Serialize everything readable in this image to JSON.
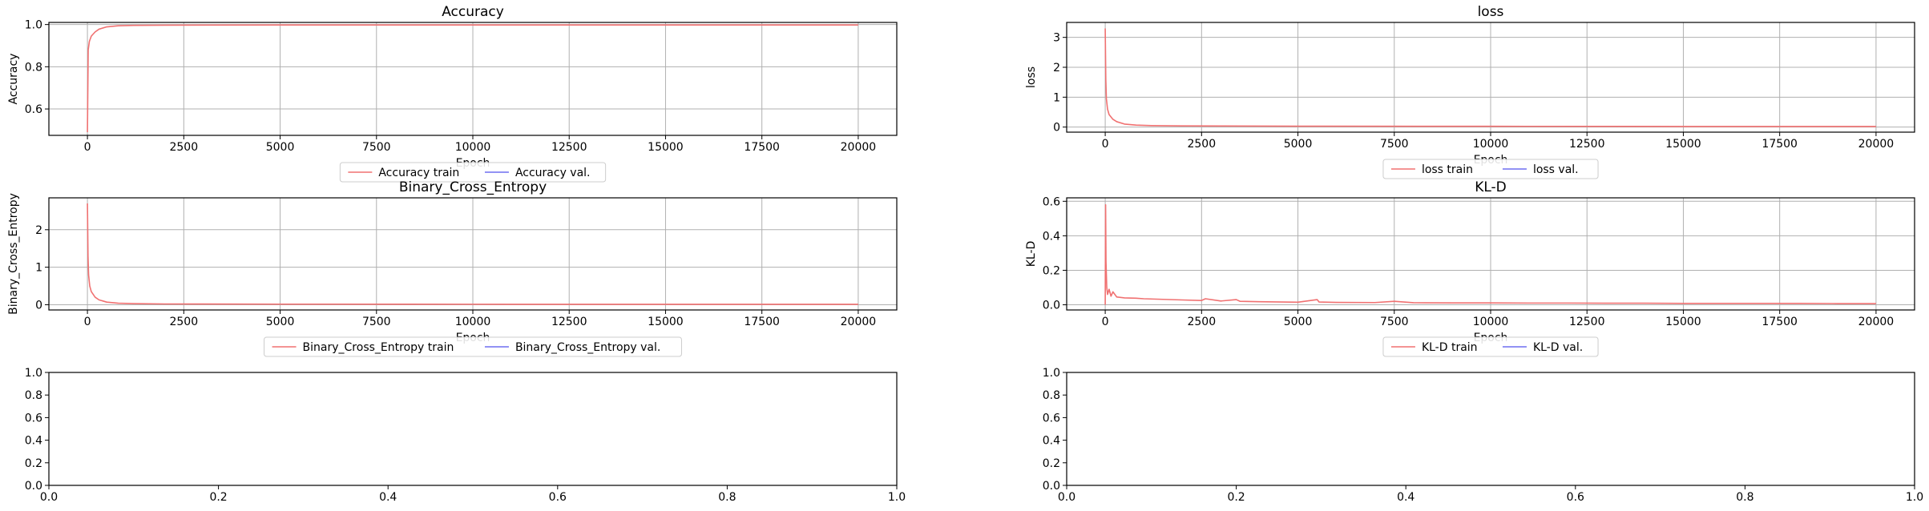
{
  "colors": {
    "train": "#f07171",
    "val": "#6e6ef0",
    "grid": "#b0b0b0",
    "axis": "#000000",
    "legend_border": "#cccccc"
  },
  "chart_data": [
    {
      "type": "line",
      "title": "Accuracy",
      "xlabel": "Epoch",
      "ylabel": "Accuracy",
      "xlim": [
        -1000,
        21000
      ],
      "ylim": [
        0.475,
        1.01
      ],
      "xticks": [
        0,
        2500,
        5000,
        7500,
        10000,
        12500,
        15000,
        17500,
        20000
      ],
      "yticks": [
        0.6,
        0.8,
        1.0
      ],
      "ytick_labels": [
        "0.6",
        "0.8",
        "1.0"
      ],
      "grid": true,
      "legend": "below",
      "series": [
        {
          "name": "Accuracy train",
          "x": [
            0,
            20,
            50,
            100,
            200,
            300,
            500,
            800,
            1200,
            2000,
            5000,
            10000,
            15000,
            20000
          ],
          "y": [
            0.49,
            0.88,
            0.92,
            0.945,
            0.965,
            0.978,
            0.989,
            0.994,
            0.996,
            0.997,
            0.998,
            0.998,
            0.998,
            0.998
          ]
        },
        {
          "name": "Accuracy val.",
          "x": [],
          "y": []
        }
      ]
    },
    {
      "type": "line",
      "title": "loss",
      "xlabel": "Epoch",
      "ylabel": "loss",
      "xlim": [
        -1000,
        21000
      ],
      "ylim": [
        -0.17,
        3.5
      ],
      "xticks": [
        0,
        2500,
        5000,
        7500,
        10000,
        12500,
        15000,
        17500,
        20000
      ],
      "yticks": [
        0,
        1,
        2,
        3
      ],
      "ytick_labels": [
        "0",
        "1",
        "2",
        "3"
      ],
      "grid": true,
      "legend": "below",
      "series": [
        {
          "name": "loss train",
          "x": [
            0,
            15,
            30,
            60,
            100,
            200,
            300,
            500,
            800,
            1200,
            2000,
            5000,
            10000,
            15000,
            20000
          ],
          "y": [
            3.3,
            1.6,
            0.95,
            0.6,
            0.42,
            0.26,
            0.18,
            0.1,
            0.065,
            0.05,
            0.04,
            0.03,
            0.025,
            0.02,
            0.02
          ]
        },
        {
          "name": "loss val.",
          "x": [],
          "y": []
        }
      ]
    },
    {
      "type": "line",
      "title": "Binary_Cross_Entropy",
      "xlabel": "Epoch",
      "ylabel": "Binary_Cross_Entropy",
      "xlim": [
        -1000,
        21000
      ],
      "ylim": [
        -0.14,
        2.85
      ],
      "xticks": [
        0,
        2500,
        5000,
        7500,
        10000,
        12500,
        15000,
        17500,
        20000
      ],
      "yticks": [
        0,
        1,
        2
      ],
      "ytick_labels": [
        "0",
        "1",
        "2"
      ],
      "grid": true,
      "legend": "below",
      "series": [
        {
          "name": "Binary_Cross_Entropy train",
          "x": [
            0,
            15,
            30,
            60,
            100,
            200,
            300,
            500,
            800,
            1200,
            2000,
            5000,
            10000,
            15000,
            20000
          ],
          "y": [
            2.7,
            1.3,
            0.8,
            0.5,
            0.35,
            0.2,
            0.13,
            0.07,
            0.04,
            0.03,
            0.02,
            0.015,
            0.012,
            0.01,
            0.01
          ]
        },
        {
          "name": "Binary_Cross_Entropy val.",
          "x": [],
          "y": []
        }
      ]
    },
    {
      "type": "line",
      "title": "KL-D",
      "xlabel": "Epoch",
      "ylabel": "KL-D",
      "xlim": [
        -1000,
        21000
      ],
      "ylim": [
        -0.03,
        0.62
      ],
      "xticks": [
        0,
        2500,
        5000,
        7500,
        10000,
        12500,
        15000,
        17500,
        20000
      ],
      "yticks": [
        0.0,
        0.2,
        0.4,
        0.6
      ],
      "ytick_labels": [
        "0.0",
        "0.2",
        "0.4",
        "0.6"
      ],
      "grid": true,
      "legend": "below",
      "series": [
        {
          "name": "KL-D train",
          "x": [
            0,
            10,
            20,
            40,
            60,
            100,
            150,
            200,
            300,
            500,
            800,
            1000,
            2000,
            2500,
            2600,
            3000,
            3400,
            3500,
            4000,
            5000,
            5500,
            5550,
            6000,
            7000,
            7500,
            8000,
            9000,
            10000,
            11000,
            12000,
            13000,
            14000,
            15000,
            16000,
            17000,
            18000,
            19000,
            20000
          ],
          "y": [
            0.0,
            0.58,
            0.25,
            0.1,
            0.06,
            0.09,
            0.05,
            0.075,
            0.045,
            0.04,
            0.038,
            0.035,
            0.028,
            0.025,
            0.035,
            0.022,
            0.03,
            0.02,
            0.018,
            0.015,
            0.03,
            0.016,
            0.014,
            0.013,
            0.02,
            0.012,
            0.011,
            0.011,
            0.01,
            0.01,
            0.009,
            0.009,
            0.008,
            0.008,
            0.008,
            0.008,
            0.007,
            0.007
          ]
        },
        {
          "name": "KL-D val.",
          "x": [],
          "y": []
        }
      ]
    },
    {
      "type": "line",
      "title": "",
      "xlabel": "",
      "ylabel": "",
      "xlim": [
        0,
        1
      ],
      "ylim": [
        0,
        1
      ],
      "xticks": [
        0.0,
        0.2,
        0.4,
        0.6,
        0.8,
        1.0
      ],
      "xtick_labels": [
        "0.0",
        "0.2",
        "0.4",
        "0.6",
        "0.8",
        "1.0"
      ],
      "yticks": [
        0.0,
        0.2,
        0.4,
        0.6,
        0.8,
        1.0
      ],
      "ytick_labels": [
        "0.0",
        "0.2",
        "0.4",
        "0.6",
        "0.8",
        "1.0"
      ],
      "grid": false,
      "series": []
    },
    {
      "type": "line",
      "title": "",
      "xlabel": "",
      "ylabel": "",
      "xlim": [
        0,
        1
      ],
      "ylim": [
        0,
        1
      ],
      "xticks": [
        0.0,
        0.2,
        0.4,
        0.6,
        0.8,
        1.0
      ],
      "xtick_labels": [
        "0.0",
        "0.2",
        "0.4",
        "0.6",
        "0.8",
        "1.0"
      ],
      "yticks": [
        0.0,
        0.2,
        0.4,
        0.6,
        0.8,
        1.0
      ],
      "ytick_labels": [
        "0.0",
        "0.2",
        "0.4",
        "0.6",
        "0.8",
        "1.0"
      ],
      "grid": false,
      "series": []
    }
  ]
}
